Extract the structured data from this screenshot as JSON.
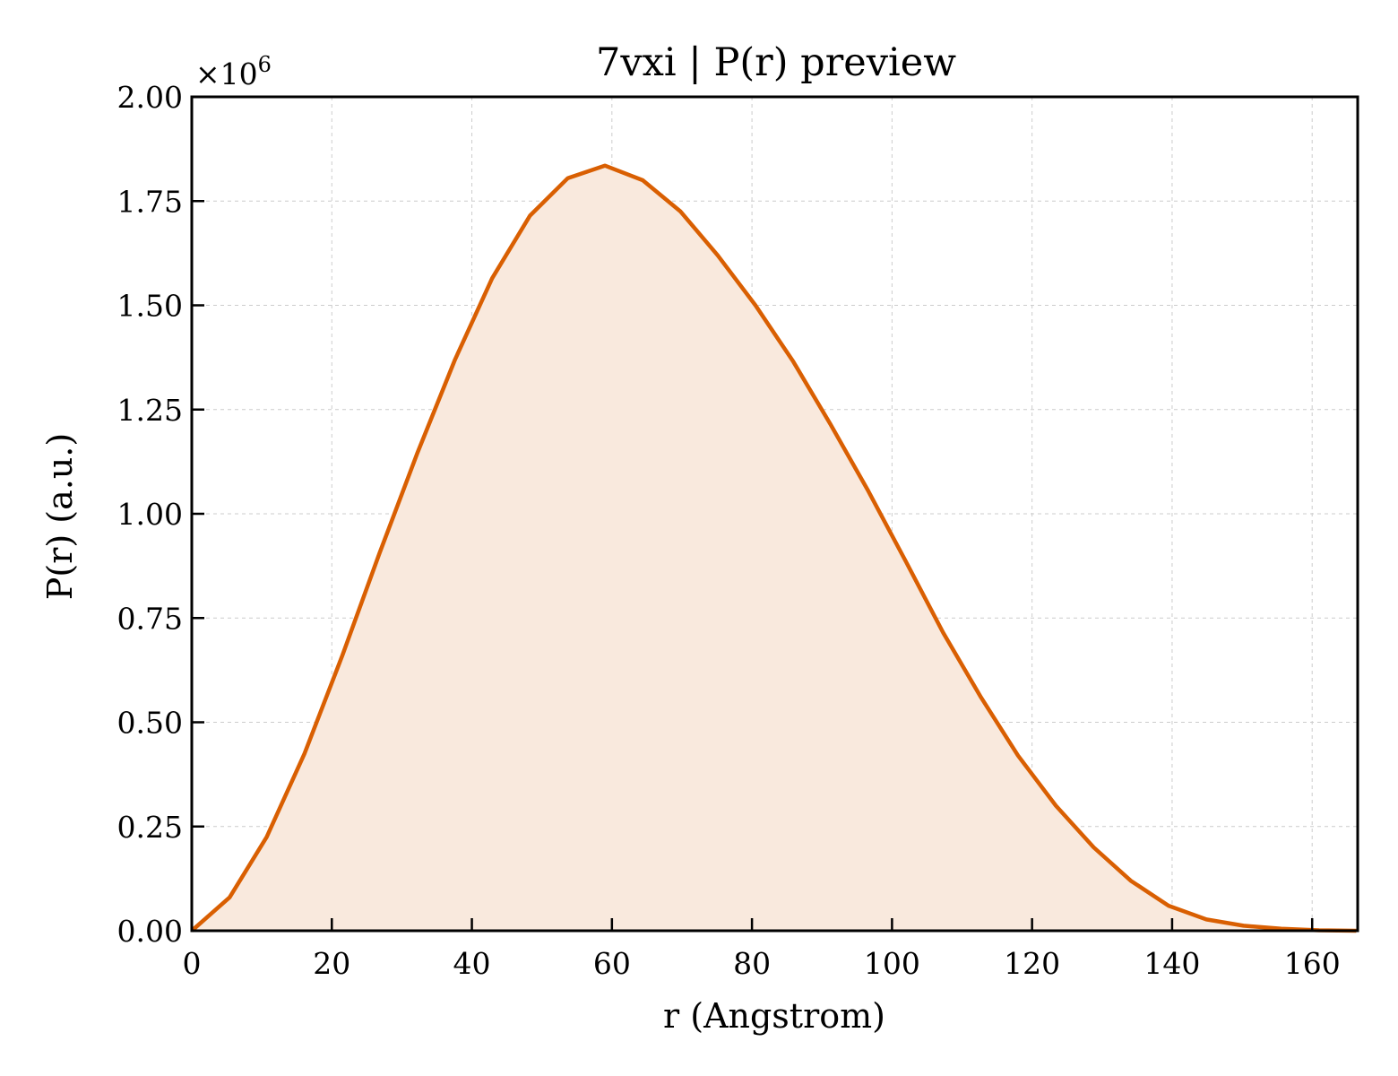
{
  "chart_data": {
    "type": "area",
    "title": "7vxi | P(r) preview",
    "xlabel": "r (Angstrom)",
    "ylabel": "P(r) (a.u.)",
    "y_multiplier_base": "×10",
    "y_multiplier_exp": "6",
    "xlim": [
      0,
      166.5
    ],
    "ylim": [
      0,
      2.0
    ],
    "x_ticks": [
      0,
      20,
      40,
      60,
      80,
      100,
      120,
      140,
      160
    ],
    "x_tick_labels": [
      "0",
      "20",
      "40",
      "60",
      "80",
      "100",
      "120",
      "140",
      "160"
    ],
    "y_ticks": [
      0,
      0.25,
      0.5,
      0.75,
      1.0,
      1.25,
      1.5,
      1.75,
      2.0
    ],
    "y_tick_labels": [
      "0.00",
      "0.25",
      "0.50",
      "0.75",
      "1.00",
      "1.25",
      "1.50",
      "1.75",
      "2.00"
    ],
    "grid": true,
    "line_color": "#d95f02",
    "fill_color": "#f9e9dd",
    "series": [
      {
        "x": [
          0,
          5.4,
          10.7,
          16.1,
          21.5,
          26.8,
          32.2,
          37.6,
          42.9,
          48.3,
          53.7,
          59.0,
          64.4,
          69.8,
          75.1,
          80.5,
          85.9,
          91.2,
          96.6,
          102.0,
          107.3,
          112.7,
          118.0,
          123.4,
          128.8,
          134.1,
          139.5,
          144.9,
          150.2,
          155.6,
          161.0,
          166.3
        ],
        "y": [
          0,
          0.08,
          0.225,
          0.425,
          0.66,
          0.905,
          1.145,
          1.37,
          1.565,
          1.715,
          1.805,
          1.835,
          1.8,
          1.725,
          1.62,
          1.5,
          1.365,
          1.215,
          1.055,
          0.885,
          0.715,
          0.56,
          0.42,
          0.3,
          0.2,
          0.12,
          0.06,
          0.027,
          0.012,
          0.005,
          0.001,
          0
        ]
      }
    ]
  }
}
